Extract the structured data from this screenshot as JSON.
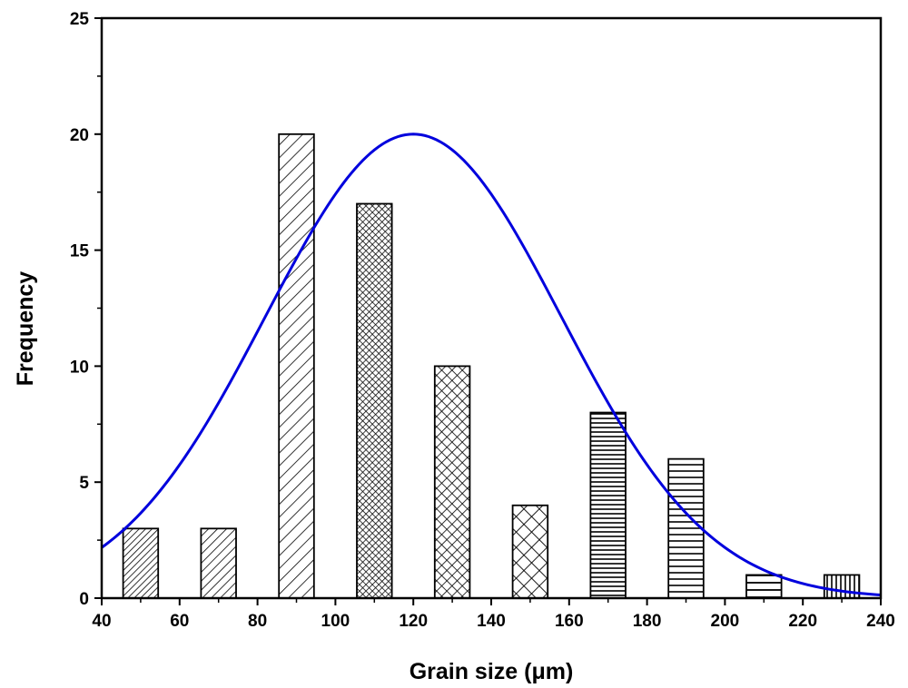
{
  "chart_data": {
    "type": "bar",
    "title": "",
    "xlabel": "Grain size (μm)",
    "ylabel": "Frequency",
    "xlim": [
      40,
      240
    ],
    "ylim": [
      0,
      25
    ],
    "x_ticks": [
      "40",
      "60",
      "80",
      "100",
      "120",
      "140",
      "160",
      "180",
      "200",
      "220",
      "240"
    ],
    "y_ticks": [
      "0",
      "5",
      "10",
      "15",
      "20",
      "25"
    ],
    "bin_width": 10,
    "bars": [
      {
        "x": 50,
        "value": 3,
        "pattern": "dense-diagonal"
      },
      {
        "x": 70,
        "value": 3,
        "pattern": "diagonal"
      },
      {
        "x": 90,
        "value": 20,
        "pattern": "wide-diagonal"
      },
      {
        "x": 110,
        "value": 17,
        "pattern": "dense-crosshatch"
      },
      {
        "x": 130,
        "value": 10,
        "pattern": "crosshatch"
      },
      {
        "x": 150,
        "value": 4,
        "pattern": "wide-crosshatch"
      },
      {
        "x": 170,
        "value": 8,
        "pattern": "dense-horizontal"
      },
      {
        "x": 190,
        "value": 6,
        "pattern": "horizontal"
      },
      {
        "x": 210,
        "value": 1,
        "pattern": "wide-horizontal"
      },
      {
        "x": 230,
        "value": 1,
        "pattern": "vertical"
      }
    ],
    "fit_curve": {
      "type": "gaussian",
      "color": "#0000dd",
      "peak_x": 120,
      "peak_y": 20,
      "sigma": 38
    },
    "grid": false,
    "legend": "none"
  }
}
